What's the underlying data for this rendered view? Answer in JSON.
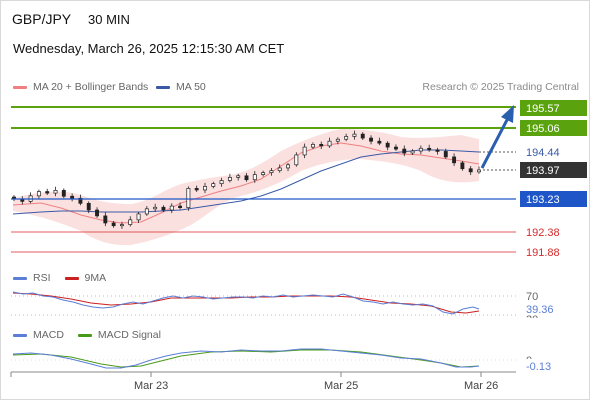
{
  "header": {
    "symbol": "GBP/JPY",
    "timeframe": "30 MIN",
    "datetime": "Wednesday, March 26, 2025 12:15:30 AM CET"
  },
  "legend": {
    "ma20_bb": "MA 20 + Bollinger Bands",
    "ma50": "MA 50",
    "copyright": "Research © 2025 Trading Central"
  },
  "levels": {
    "r2": "195.57",
    "r1": "195.06",
    "ma": "194.44",
    "current": "193.97",
    "pivot": "193.23",
    "s1": "192.38",
    "s2": "191.88"
  },
  "rsi": {
    "label": "RSI",
    "ma_label": "9MA",
    "level_70": "70",
    "value": "39.36",
    "level_30": "30"
  },
  "macd": {
    "label": "MACD",
    "signal_label": "MACD Signal",
    "zero": "0",
    "value": "-0.13"
  },
  "xaxis": [
    "Mar 23",
    "Mar 25",
    "Mar 26"
  ],
  "colors": {
    "resistance": "#5aa30f",
    "pivot": "#1f56c7",
    "support": "#d9292b",
    "current": "#333333",
    "ma20": "#f08080",
    "ma50": "#3a5aa8",
    "rsi": "#5b7fd6",
    "rsi_ma": "#cc1f1f",
    "macd": "#5b7fd6",
    "macd_signal": "#4a9a1a",
    "arrow": "#2a5fb0"
  },
  "chart_data": {
    "type": "candlestick",
    "candles_close": [
      193.23,
      193.17,
      193.31,
      193.42,
      193.38,
      193.45,
      193.3,
      193.25,
      193.12,
      192.95,
      192.8,
      192.62,
      192.55,
      192.58,
      192.7,
      192.85,
      192.98,
      193.02,
      192.95,
      193.05,
      193.01,
      193.5,
      193.46,
      193.55,
      193.62,
      193.7,
      193.78,
      193.82,
      193.72,
      193.85,
      193.9,
      193.95,
      194.02,
      194.1,
      194.35,
      194.55,
      194.62,
      194.58,
      194.7,
      194.75,
      194.82,
      194.88,
      194.78,
      194.7,
      194.65,
      194.55,
      194.5,
      194.4,
      194.45,
      194.52,
      194.48,
      194.44,
      194.3,
      194.15,
      194.0,
      193.92,
      193.97
    ],
    "ma20_last": 194.1,
    "ma50_last": 194.44,
    "rsi_last": 39.36,
    "macd_last": -0.13
  }
}
